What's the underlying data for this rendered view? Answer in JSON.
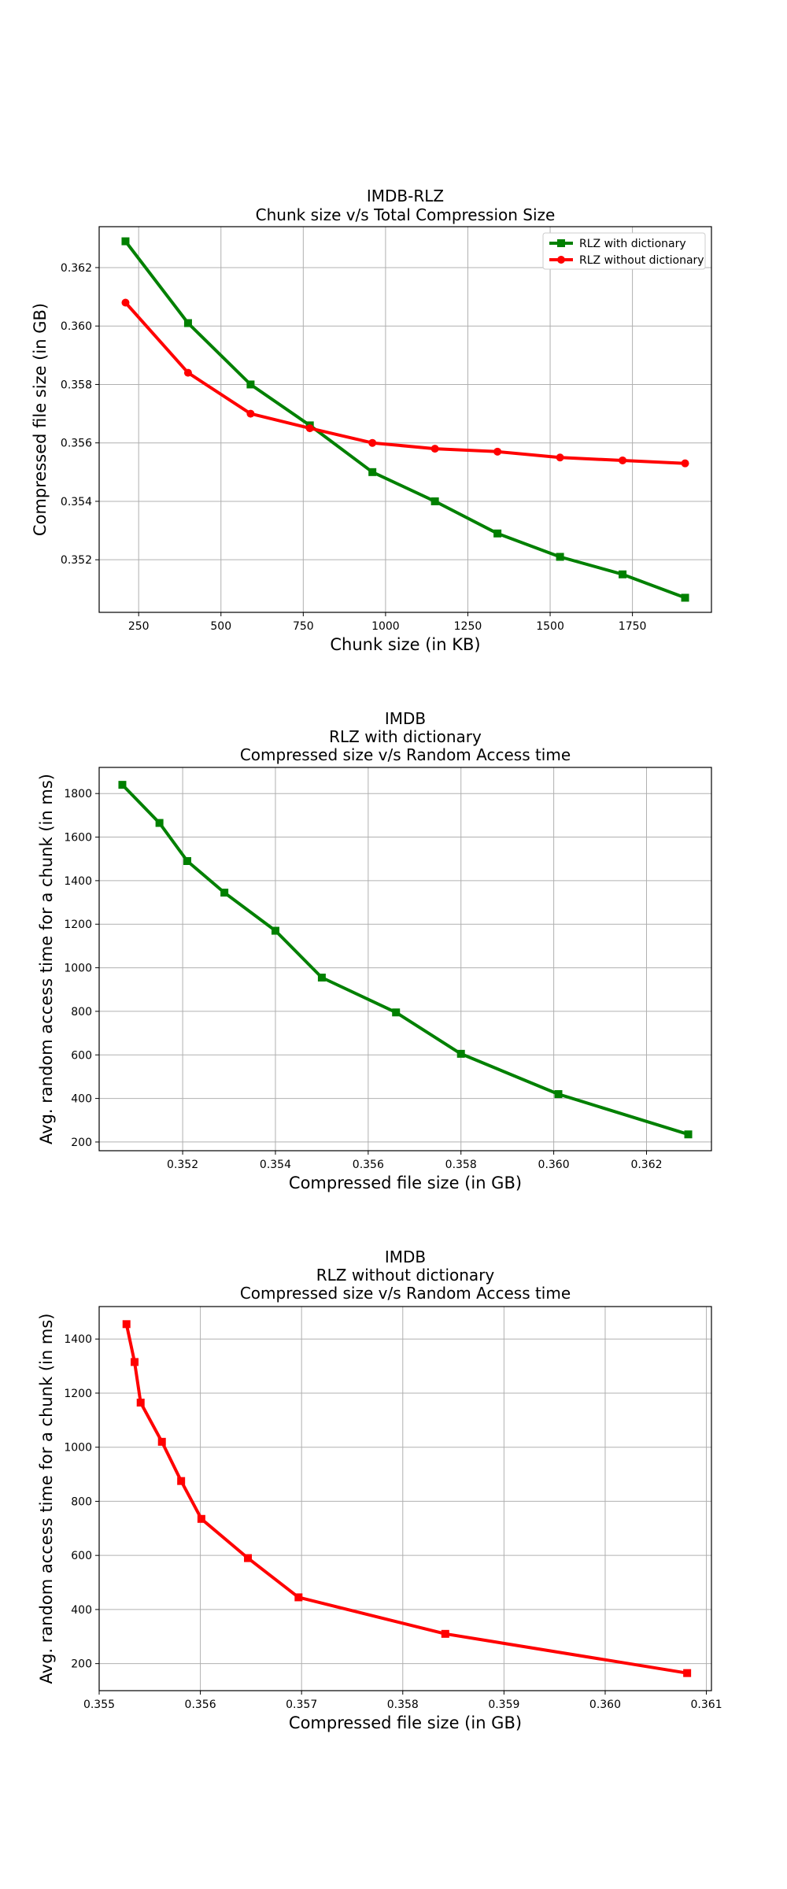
{
  "chart_data": [
    {
      "type": "line",
      "title_lines": [
        "IMDB-RLZ",
        "Chunk size v/s Total Compression Size"
      ],
      "xlabel": "Chunk size (in KB)",
      "ylabel": "Compressed file size (in GB)",
      "xlim": [
        130,
        1990
      ],
      "ylim": [
        0.3502,
        0.3634
      ],
      "xticks": [
        250,
        500,
        750,
        1000,
        1250,
        1500,
        1750
      ],
      "yticks": [
        0.352,
        0.354,
        0.356,
        0.358,
        0.36,
        0.362
      ],
      "ytick_decimals": 3,
      "grid": true,
      "legend_position": "top-right",
      "series": [
        {
          "name": "RLZ with dictionary",
          "color": "#008000",
          "marker": "square",
          "x": [
            210,
            400,
            590,
            770,
            960,
            1150,
            1340,
            1530,
            1720,
            1910
          ],
          "y": [
            0.3629,
            0.3601,
            0.358,
            0.3566,
            0.355,
            0.354,
            0.3529,
            0.3521,
            0.3515,
            0.3507
          ]
        },
        {
          "name": "RLZ without dictionary",
          "color": "#ff0000",
          "marker": "circle",
          "x": [
            210,
            400,
            590,
            770,
            960,
            1150,
            1340,
            1530,
            1720,
            1910
          ],
          "y": [
            0.3608,
            0.3584,
            0.357,
            0.3565,
            0.356,
            0.3558,
            0.3557,
            0.3555,
            0.3554,
            0.3553
          ]
        }
      ]
    },
    {
      "type": "line",
      "title_lines": [
        "IMDB",
        "RLZ with dictionary",
        "Compressed size v/s Random Access time"
      ],
      "xlabel": "Compressed file size (in GB)",
      "ylabel": "Avg. random access time for a chunk (in ms)",
      "xlim": [
        0.3502,
        0.3634
      ],
      "ylim": [
        160,
        1920
      ],
      "xticks": [
        0.352,
        0.354,
        0.356,
        0.358,
        0.36,
        0.362
      ],
      "xtick_decimals": 3,
      "yticks": [
        200,
        400,
        600,
        800,
        1000,
        1200,
        1400,
        1600,
        1800
      ],
      "grid": true,
      "series": [
        {
          "name": "",
          "color": "#008000",
          "marker": "square",
          "x": [
            0.3507,
            0.3515,
            0.3521,
            0.3529,
            0.354,
            0.355,
            0.3566,
            0.358,
            0.3601,
            0.3629
          ],
          "y": [
            1840,
            1665,
            1490,
            1345,
            1170,
            955,
            795,
            605,
            420,
            235
          ]
        }
      ]
    },
    {
      "type": "line",
      "title_lines": [
        "IMDB",
        "RLZ without dictionary",
        "Compressed size v/s Random Access time"
      ],
      "xlabel": "Compressed file size (in GB)",
      "ylabel": "Avg. random access time for a chunk (in ms)",
      "xlim": [
        0.355,
        0.36105
      ],
      "ylim": [
        100,
        1520
      ],
      "xticks": [
        0.355,
        0.356,
        0.357,
        0.358,
        0.359,
        0.36,
        0.361
      ],
      "xtick_decimals": 3,
      "yticks": [
        200,
        400,
        600,
        800,
        1000,
        1200,
        1400
      ],
      "grid": true,
      "series": [
        {
          "name": "",
          "color": "#ff0000",
          "marker": "square",
          "x": [
            0.35527,
            0.35535,
            0.35541,
            0.35562,
            0.35581,
            0.35601,
            0.35647,
            0.35697,
            0.35842,
            0.36081
          ],
          "y": [
            1455,
            1315,
            1165,
            1020,
            875,
            735,
            590,
            445,
            310,
            165
          ]
        }
      ]
    }
  ]
}
